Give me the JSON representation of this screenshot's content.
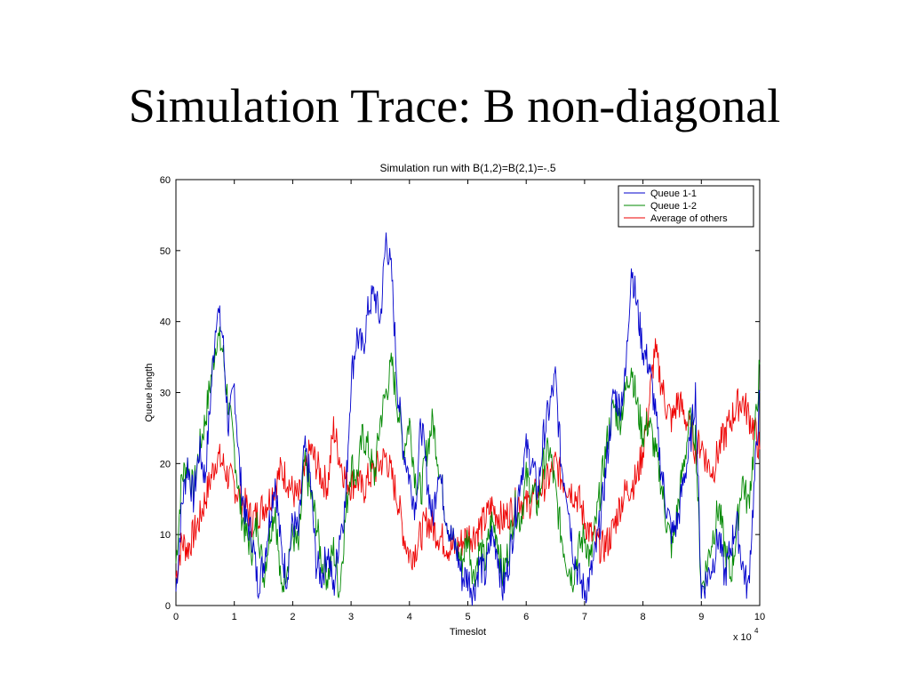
{
  "slide": {
    "title": "Simulation Trace: B non-diagonal"
  },
  "chart_data": {
    "type": "line",
    "title": "Simulation run with B(1,2)=B(2,1)=-.5",
    "xlabel": "Timeslot",
    "ylabel": "Queue length",
    "x_multiplier_label": "x 10",
    "x_multiplier_exponent": "4",
    "xlim": [
      0,
      10
    ],
    "ylim": [
      0,
      60
    ],
    "xticks": [
      "0",
      "1",
      "2",
      "3",
      "4",
      "5",
      "6",
      "7",
      "8",
      "9",
      "10"
    ],
    "yticks": [
      "0",
      "10",
      "20",
      "30",
      "40",
      "50",
      "60"
    ],
    "grid": false,
    "legend_position": "top-right",
    "series": [
      {
        "name": "Queue 1-1",
        "color": "#0000cc",
        "x": [
          0,
          0.1,
          0.2,
          0.3,
          0.4,
          0.5,
          0.6,
          0.7,
          0.8,
          0.9,
          1.0,
          1.1,
          1.2,
          1.3,
          1.4,
          1.5,
          1.6,
          1.7,
          1.8,
          1.9,
          2.0,
          2.1,
          2.2,
          2.3,
          2.4,
          2.5,
          2.6,
          2.7,
          2.8,
          2.9,
          3.0,
          3.1,
          3.2,
          3.3,
          3.4,
          3.5,
          3.6,
          3.7,
          3.8,
          3.9,
          4.0,
          4.1,
          4.2,
          4.3,
          4.4,
          4.5,
          4.6,
          4.7,
          4.8,
          4.9,
          5.0,
          5.1,
          5.2,
          5.3,
          5.4,
          5.5,
          5.6,
          5.7,
          5.8,
          5.9,
          6.0,
          6.1,
          6.2,
          6.3,
          6.4,
          6.5,
          6.6,
          6.7,
          6.8,
          6.9,
          7.0,
          7.1,
          7.2,
          7.3,
          7.4,
          7.5,
          7.6,
          7.7,
          7.8,
          7.9,
          8.0,
          8.1,
          8.2,
          8.3,
          8.4,
          8.5,
          8.6,
          8.7,
          8.8,
          8.9,
          9.0,
          9.1,
          9.2,
          9.3,
          9.4,
          9.5,
          9.6,
          9.7,
          9.8,
          9.9,
          10.0
        ],
        "values": [
          2,
          14,
          20,
          15,
          22,
          18,
          30,
          42,
          38,
          25,
          31,
          18,
          12,
          10,
          3,
          6,
          12,
          18,
          8,
          4,
          12,
          10,
          22,
          18,
          6,
          4,
          8,
          2,
          10,
          14,
          32,
          38,
          36,
          42,
          44,
          40,
          52,
          46,
          30,
          22,
          18,
          14,
          26,
          18,
          12,
          20,
          14,
          10,
          8,
          4,
          4,
          2,
          6,
          4,
          10,
          8,
          2,
          6,
          12,
          18,
          22,
          20,
          16,
          24,
          28,
          32,
          20,
          16,
          8,
          4,
          2,
          4,
          8,
          14,
          22,
          30,
          28,
          32,
          48,
          42,
          36,
          34,
          28,
          20,
          14,
          10,
          12,
          18,
          22,
          30,
          2,
          4,
          6,
          10,
          4,
          8,
          12,
          6,
          2,
          16,
          30
        ]
      },
      {
        "name": "Queue 1-2",
        "color": "#008800",
        "x": [
          0,
          0.1,
          0.2,
          0.3,
          0.4,
          0.5,
          0.6,
          0.7,
          0.8,
          0.9,
          1.0,
          1.1,
          1.2,
          1.3,
          1.4,
          1.5,
          1.6,
          1.7,
          1.8,
          1.9,
          2.0,
          2.1,
          2.2,
          2.3,
          2.4,
          2.5,
          2.6,
          2.7,
          2.8,
          2.9,
          3.0,
          3.1,
          3.2,
          3.3,
          3.4,
          3.5,
          3.6,
          3.7,
          3.8,
          3.9,
          4.0,
          4.1,
          4.2,
          4.3,
          4.4,
          4.5,
          4.6,
          4.7,
          4.8,
          4.9,
          5.0,
          5.1,
          5.2,
          5.3,
          5.4,
          5.5,
          5.6,
          5.7,
          5.8,
          5.9,
          6.0,
          6.1,
          6.2,
          6.3,
          6.4,
          6.5,
          6.6,
          6.7,
          6.8,
          6.9,
          7.0,
          7.1,
          7.2,
          7.3,
          7.4,
          7.5,
          7.6,
          7.7,
          7.8,
          7.9,
          8.0,
          8.1,
          8.2,
          8.3,
          8.4,
          8.5,
          8.6,
          8.7,
          8.8,
          8.9,
          9.0,
          9.1,
          9.2,
          9.3,
          9.4,
          9.5,
          9.6,
          9.7,
          9.8,
          9.9,
          10.0
        ],
        "values": [
          6,
          18,
          20,
          16,
          22,
          26,
          32,
          38,
          36,
          28,
          22,
          14,
          10,
          8,
          12,
          4,
          10,
          14,
          2,
          6,
          10,
          8,
          20,
          16,
          12,
          6,
          4,
          8,
          2,
          12,
          20,
          18,
          24,
          22,
          18,
          26,
          30,
          34,
          28,
          22,
          26,
          18,
          16,
          22,
          26,
          20,
          14,
          10,
          8,
          6,
          10,
          4,
          8,
          6,
          12,
          10,
          4,
          8,
          14,
          12,
          18,
          16,
          14,
          20,
          22,
          16,
          10,
          6,
          4,
          8,
          10,
          6,
          12,
          18,
          24,
          28,
          26,
          30,
          34,
          28,
          24,
          26,
          22,
          18,
          12,
          8,
          14,
          20,
          26,
          24,
          2,
          6,
          10,
          14,
          8,
          4,
          10,
          18,
          14,
          22,
          34
        ]
      },
      {
        "name": "Average of others",
        "color": "#ee0000",
        "x": [
          0,
          0.1,
          0.2,
          0.3,
          0.4,
          0.5,
          0.6,
          0.7,
          0.8,
          0.9,
          1.0,
          1.1,
          1.2,
          1.3,
          1.4,
          1.5,
          1.6,
          1.7,
          1.8,
          1.9,
          2.0,
          2.1,
          2.2,
          2.3,
          2.4,
          2.5,
          2.6,
          2.7,
          2.8,
          2.9,
          3.0,
          3.1,
          3.2,
          3.3,
          3.4,
          3.5,
          3.6,
          3.7,
          3.8,
          3.9,
          4.0,
          4.1,
          4.2,
          4.3,
          4.4,
          4.5,
          4.6,
          4.7,
          4.8,
          4.9,
          5.0,
          5.1,
          5.2,
          5.3,
          5.4,
          5.5,
          5.6,
          5.7,
          5.8,
          5.9,
          6.0,
          6.1,
          6.2,
          6.3,
          6.4,
          6.5,
          6.6,
          6.7,
          6.8,
          6.9,
          7.0,
          7.1,
          7.2,
          7.3,
          7.4,
          7.5,
          7.6,
          7.7,
          7.8,
          7.9,
          8.0,
          8.1,
          8.2,
          8.3,
          8.4,
          8.5,
          8.6,
          8.7,
          8.8,
          8.9,
          9.0,
          9.1,
          9.2,
          9.3,
          9.4,
          9.5,
          9.6,
          9.7,
          9.8,
          9.9,
          10.0
        ],
        "values": [
          4,
          9,
          8,
          10,
          12,
          15,
          18,
          21,
          20,
          18,
          17,
          15,
          14,
          12,
          13,
          14,
          15,
          17,
          19,
          18,
          16,
          15,
          18,
          22,
          20,
          18,
          17,
          25,
          21,
          18,
          17,
          18,
          16,
          18,
          19,
          20,
          21,
          18,
          15,
          10,
          7,
          8,
          10,
          12,
          11,
          10,
          9,
          8,
          8,
          9,
          10,
          10,
          11,
          12,
          14,
          13,
          12,
          13,
          14,
          15,
          14,
          15,
          16,
          17,
          18,
          20,
          18,
          17,
          16,
          15,
          12,
          10,
          9,
          8,
          9,
          11,
          14,
          16,
          17,
          18,
          22,
          28,
          36,
          32,
          28,
          26,
          29,
          27,
          25,
          22,
          23,
          20,
          19,
          22,
          24,
          26,
          28,
          29,
          27,
          25,
          22
        ]
      }
    ]
  }
}
